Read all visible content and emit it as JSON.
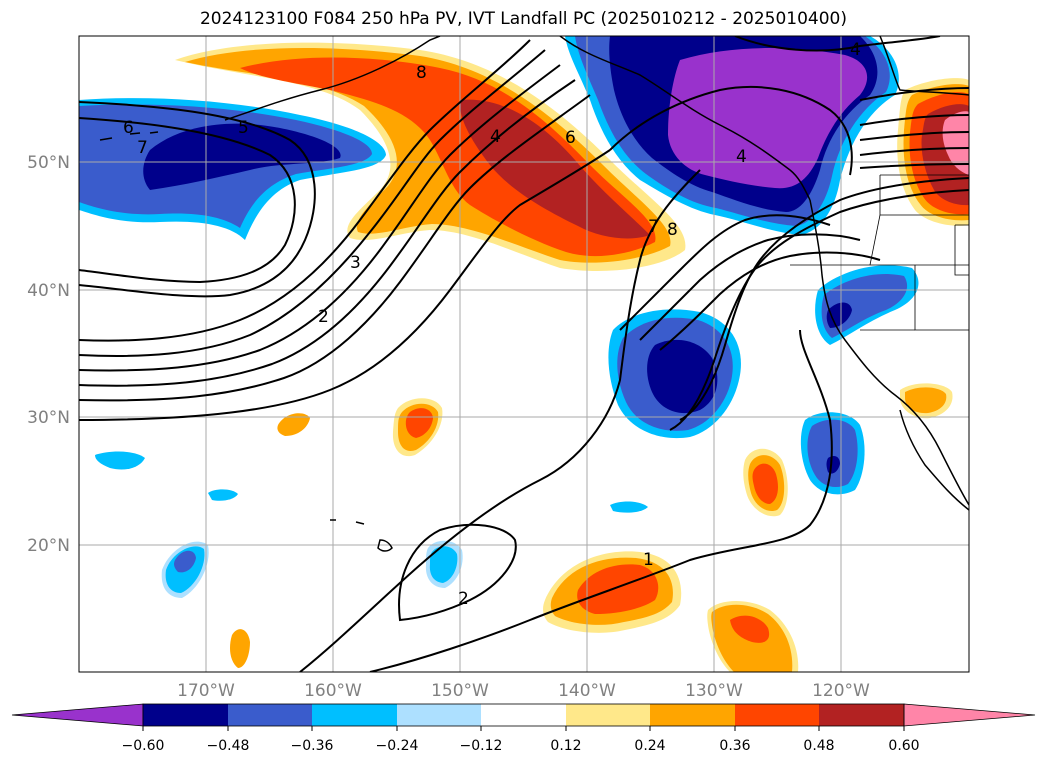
{
  "title": "2024123100 F084 250 hPa PV, IVT Landfall PC (2025010212 - 2025010400)",
  "colors": {
    "land_outline": "#000000",
    "gridline": "#aaaaaa",
    "tick_label": "#808080",
    "contour": "#000000"
  },
  "lat_labels": [
    "50°N",
    "40°N",
    "30°N",
    "20°N"
  ],
  "lon_labels": [
    "170°W",
    "160°W",
    "150°W",
    "140°W",
    "130°W",
    "120°W"
  ],
  "contour_labels": [
    "6",
    "7",
    "5",
    "8",
    "4",
    "6",
    "8",
    "7",
    "4",
    "3",
    "2",
    "1",
    "2",
    "4"
  ],
  "colorbar": {
    "colors": [
      "#9932cc",
      "#00008b",
      "#3a5ccc",
      "#00bfff",
      "#ade0ff",
      "#ffffff",
      "#ffe88a",
      "#ffa500",
      "#ff4500",
      "#b22222",
      "#ff85a8"
    ],
    "tick_labels": [
      "−0.60",
      "−0.48",
      "−0.36",
      "−0.24",
      "−0.12",
      "0.12",
      "0.24",
      "0.36",
      "0.48",
      "0.60"
    ]
  }
}
